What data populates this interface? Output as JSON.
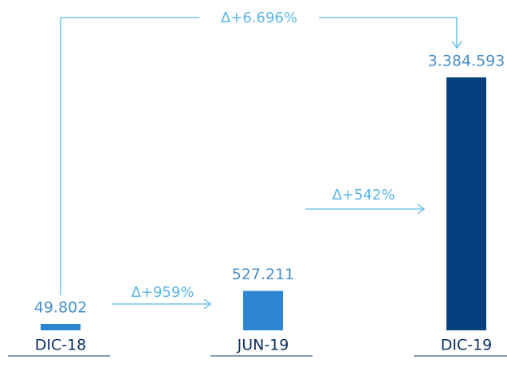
{
  "chart_data": {
    "type": "bar",
    "categories": [
      "DIC-18",
      "JUN-19",
      "DIC-19"
    ],
    "values": [
      49802,
      527211,
      3384593
    ],
    "value_labels": [
      "49.802",
      "527.211",
      "3.384.593"
    ],
    "colors": [
      "#2d86d1",
      "#2d86d1",
      "#05417f"
    ],
    "annotations": [
      "Δ+6.696%",
      "Δ+959%",
      "Δ+542%"
    ]
  }
}
